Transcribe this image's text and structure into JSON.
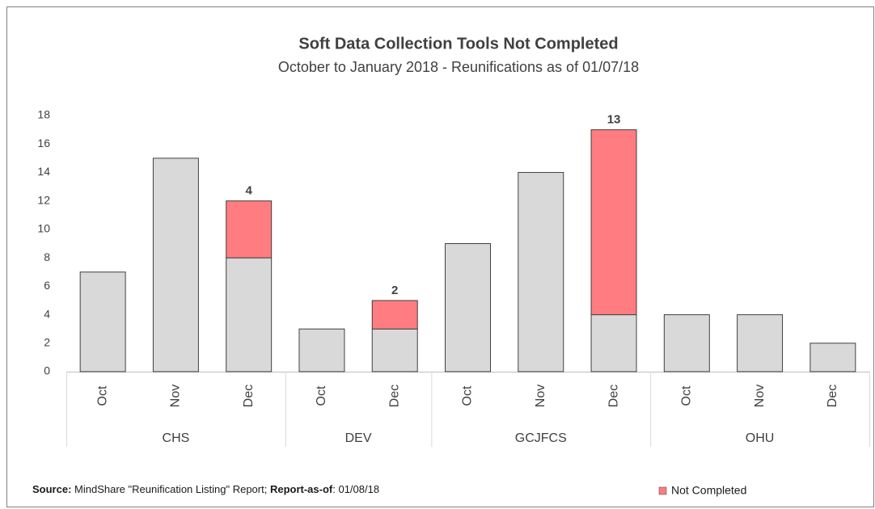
{
  "chart_data": {
    "type": "stacked_bar",
    "title": "Soft Data Collection Tools Not Completed",
    "subtitle": "October to January 2018 - Reunifications as of 01/07/18",
    "groups": [
      {
        "name": "CHS",
        "categories": [
          "Oct",
          "Nov",
          "Dec"
        ]
      },
      {
        "name": "DEV",
        "categories": [
          "Oct",
          "Dec"
        ]
      },
      {
        "name": "GCJFCS",
        "categories": [
          "Oct",
          "Nov",
          "Dec"
        ]
      },
      {
        "name": "OHU",
        "categories": [
          "Oct",
          "Nov",
          "Dec"
        ]
      }
    ],
    "series": [
      {
        "color": "#d9d9d9",
        "values": [
          7,
          15,
          8,
          3,
          3,
          9,
          14,
          4,
          4,
          4,
          2
        ]
      },
      {
        "name": "Not Completed",
        "color": "#ff7c80",
        "values": [
          null,
          null,
          4,
          null,
          2,
          null,
          null,
          13,
          null,
          null,
          null
        ],
        "data_labels": true
      }
    ],
    "ylim": [
      0,
      18
    ],
    "yticks": [
      0,
      2,
      4,
      6,
      8,
      10,
      12,
      14,
      16,
      18
    ],
    "legend": "bottom-right",
    "footnote": {
      "source_label": "Source:",
      "source_text": "MindShare \"Reunification Listing\" Report;",
      "asof_label": "Report-as-of",
      "asof_text": ": 01/08/18"
    }
  }
}
